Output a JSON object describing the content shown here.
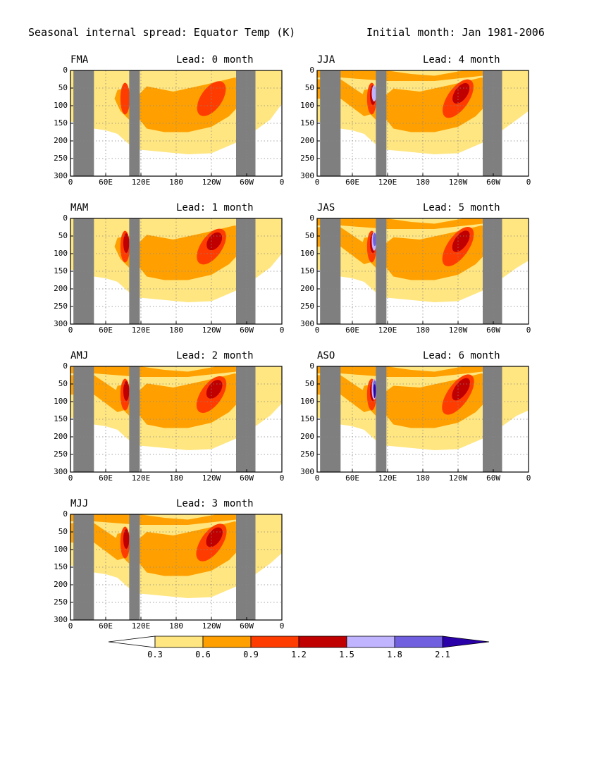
{
  "title_left": "Seasonal internal spread: Equator Temp (K)",
  "title_right": "Initial month: Jan 1981-2006",
  "colors": {
    "lt03": "#ffffff",
    "c03": "#ffe680",
    "c06": "#ffa000",
    "c09": "#ff3c00",
    "c12": "#c00000",
    "c15": "#c0b4ff",
    "c18": "#7060e0",
    "c21": "#2a00a8",
    "land": "#7f7f7f",
    "grid": "#888888"
  },
  "chart_data": {
    "type": "heatmap",
    "x_ticks": [
      "0",
      "60E",
      "120E",
      "180",
      "120W",
      "60W",
      "0"
    ],
    "y_ticks": [
      "0",
      "50",
      "100",
      "150",
      "200",
      "250",
      "300"
    ],
    "ylim": [
      300,
      0
    ],
    "xlim": [
      0,
      360
    ],
    "grid": true,
    "land_bands_lon": [
      [
        5,
        40
      ],
      [
        100,
        118
      ],
      [
        282,
        315
      ]
    ],
    "colorbar": {
      "levels": [
        "0.3",
        "0.6",
        "0.9",
        "1.2",
        "1.5",
        "1.8",
        "2.1"
      ],
      "colors": [
        "#ffffff",
        "#ffe680",
        "#ffa000",
        "#ff3c00",
        "#c00000",
        "#c0b4ff",
        "#7060e0",
        "#2a00a8"
      ]
    },
    "panels": [
      {
        "season": "FMA",
        "lead": "Lead: 0 month",
        "lead_month": 0
      },
      {
        "season": "MAM",
        "lead": "Lead: 1 month",
        "lead_month": 1
      },
      {
        "season": "AMJ",
        "lead": "Lead: 2 month",
        "lead_month": 2
      },
      {
        "season": "MJJ",
        "lead": "Lead: 3 month",
        "lead_month": 3
      },
      {
        "season": "JJA",
        "lead": "Lead: 4 month",
        "lead_month": 4
      },
      {
        "season": "JAS",
        "lead": "Lead: 5 month",
        "lead_month": 5
      },
      {
        "season": "ASO",
        "lead": "Lead: 6 month",
        "lead_month": 6
      }
    ]
  }
}
